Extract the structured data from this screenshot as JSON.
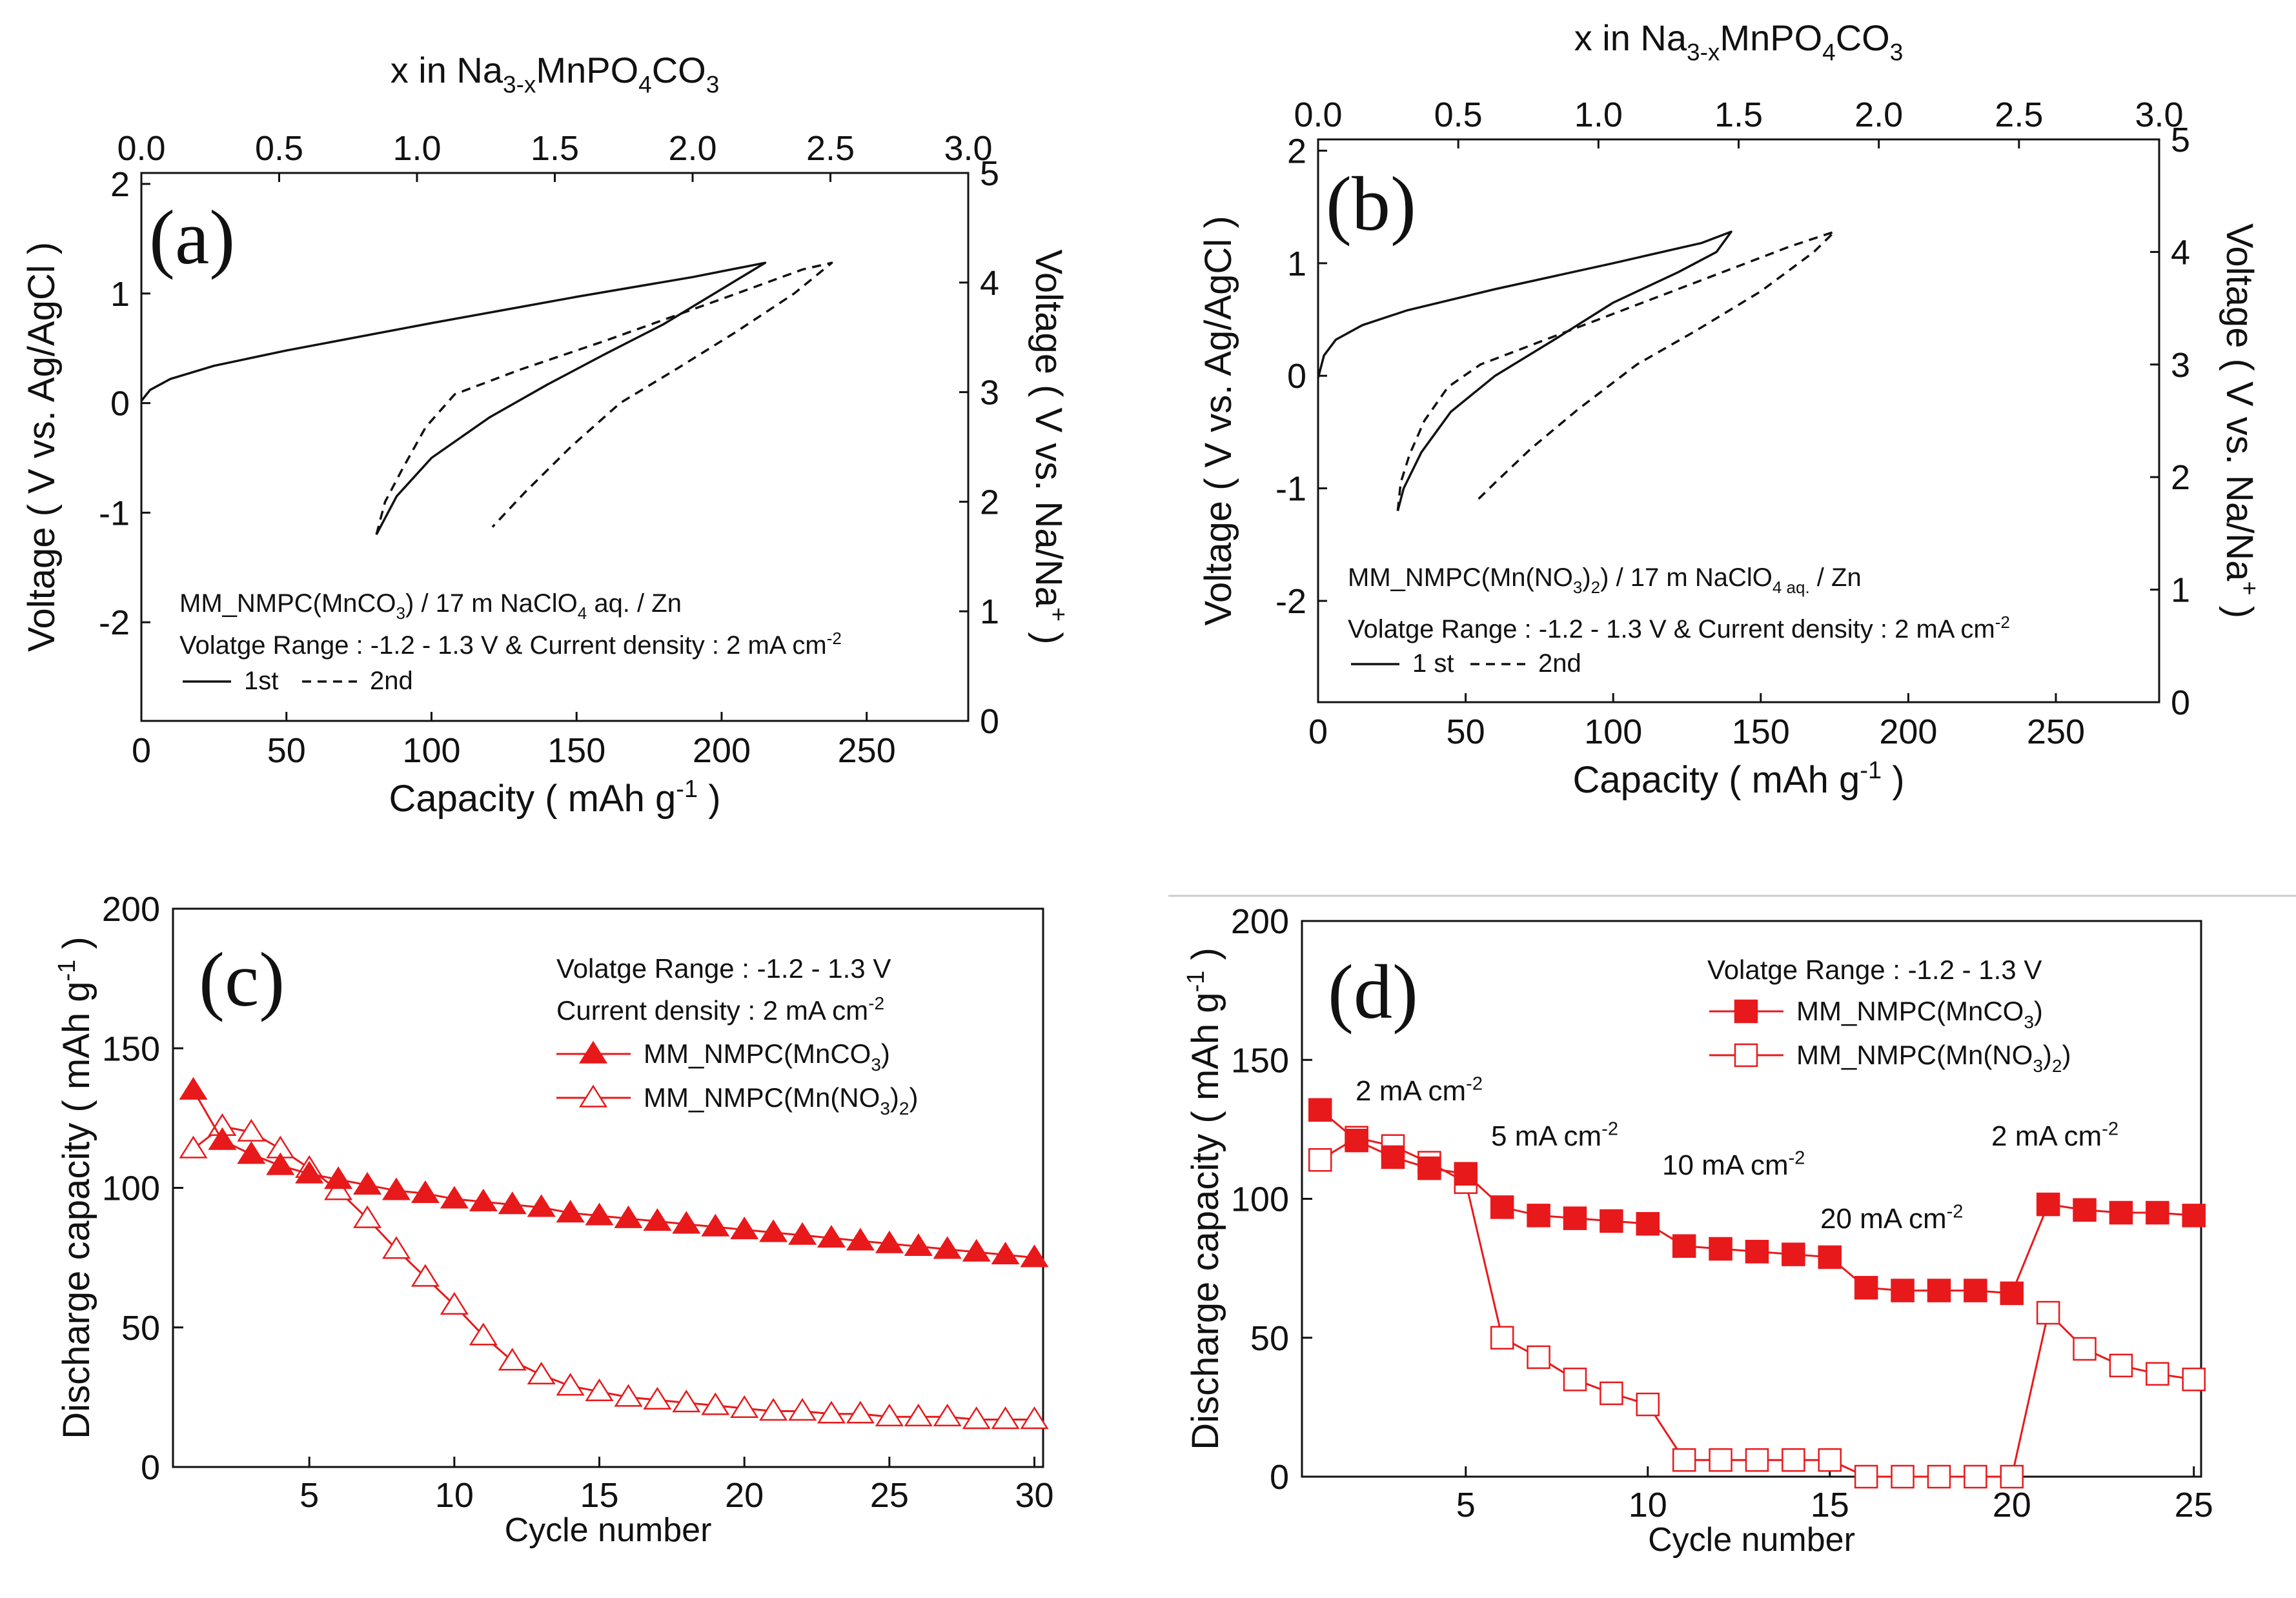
{
  "colors": {
    "axis": "#111111",
    "series_red": "#e8191b",
    "white": "#ffffff"
  },
  "chart_data": [
    {
      "panel": "(a)",
      "type": "line",
      "top_axis_label": {
        "pre": "x in Na",
        "sub": "3-x",
        "mid": "MnPO",
        "sub2": "4",
        "post": "CO",
        "sub3": "3"
      },
      "top_ticks": [
        "0.0",
        "0.5",
        "1.0",
        "1.5",
        "2.0",
        "2.5",
        "3.0"
      ],
      "top_range": [
        0,
        3
      ],
      "xlabel": "Capacity ( mAh g",
      "xlabel_sup": "-1",
      "xlabel_end": " )",
      "xlim": [
        0,
        285
      ],
      "x_ticks": [
        "0",
        "50",
        "100",
        "150",
        "200",
        "250"
      ],
      "ylabel": "Voltage ( V vs. Ag/AgCl )",
      "ylim": [
        -2.9,
        2.1
      ],
      "y_ticks": [
        "-2",
        "-1",
        "0",
        "1",
        "2"
      ],
      "y2label": "Voltage ( V vs. Na/Na",
      "y2label_sup": "+",
      "y2label_end": " )",
      "y2_ticks": [
        "0",
        "1",
        "2",
        "3",
        "4",
        "5"
      ],
      "cell": {
        "pre": "MM_NMPC(MnCO",
        "sub": "3",
        "mid": ") / 17 m NaClO",
        "sub2": "4",
        "post": " aq. / Zn"
      },
      "range_text": "Volatge Range : -1.2 - 1.3 V & Current density : 2 mA cm",
      "range_sup": "-2",
      "legend": [
        "1st",
        "2nd"
      ],
      "series": [
        {
          "name": "1st",
          "style": "solid",
          "charge": [
            [
              0,
              0.02
            ],
            [
              3,
              0.12
            ],
            [
              10,
              0.22
            ],
            [
              25,
              0.34
            ],
            [
              50,
              0.48
            ],
            [
              100,
              0.73
            ],
            [
              150,
              0.97
            ],
            [
              190,
              1.15
            ],
            [
              215,
              1.28
            ]
          ],
          "discharge": [
            [
              215,
              1.28
            ],
            [
              200,
              1.04
            ],
            [
              180,
              0.72
            ],
            [
              160,
              0.45
            ],
            [
              140,
              0.17
            ],
            [
              120,
              -0.13
            ],
            [
              100,
              -0.5
            ],
            [
              88,
              -0.85
            ],
            [
              81,
              -1.2
            ]
          ]
        },
        {
          "name": "2nd",
          "style": "dashed",
          "charge": [
            [
              81,
              -1.2
            ],
            [
              84,
              -0.9
            ],
            [
              90,
              -0.6
            ],
            [
              98,
              -0.22
            ],
            [
              108,
              0.08
            ],
            [
              130,
              0.3
            ],
            [
              160,
              0.57
            ],
            [
              200,
              0.95
            ],
            [
              228,
              1.22
            ],
            [
              238,
              1.28
            ]
          ],
          "discharge": [
            [
              238,
              1.28
            ],
            [
              225,
              1.0
            ],
            [
              205,
              0.65
            ],
            [
              185,
              0.32
            ],
            [
              165,
              0.0
            ],
            [
              148,
              -0.4
            ],
            [
              132,
              -0.82
            ],
            [
              121,
              -1.13
            ]
          ]
        }
      ]
    },
    {
      "panel": "(b)",
      "type": "line",
      "top_axis_label": {
        "pre": "x in Na",
        "sub": "3-x",
        "mid": "MnPO",
        "sub2": "4",
        "post": "CO",
        "sub3": "3"
      },
      "top_ticks": [
        "0.0",
        "0.5",
        "1.0",
        "1.5",
        "2.0",
        "2.5",
        "3.0"
      ],
      "top_range": [
        0,
        3
      ],
      "xlabel": "Capacity ( mAh g",
      "xlabel_sup": "-1",
      "xlabel_end": " )",
      "xlim": [
        0,
        285
      ],
      "x_ticks": [
        "0",
        "50",
        "100",
        "150",
        "200",
        "250"
      ],
      "ylabel": "Voltage ( V vs. Ag/AgCl )",
      "ylim": [
        -2.9,
        2.1
      ],
      "y_ticks": [
        "-2",
        "-1",
        "0",
        "1",
        "2"
      ],
      "y2label": "Voltage ( V vs. Na/Na",
      "y2label_sup": "+",
      "y2label_end": " )",
      "y2_ticks": [
        "0",
        "1",
        "2",
        "3",
        "4",
        "5"
      ],
      "cell": {
        "pre": "MM_NMPC(Mn(NO",
        "sub": "3",
        "mid": ")",
        "sub2": "2",
        "post": ") / 17 m NaClO",
        "sub3": "4 aq.",
        "end": " / Zn"
      },
      "range_text": "Volatge Range : -1.2 - 1.3 V & Current density : 2 mA cm",
      "range_sup": "-2",
      "legend": [
        "1 st",
        "2nd"
      ],
      "series": [
        {
          "name": "1st",
          "style": "solid",
          "charge": [
            [
              0,
              -0.02
            ],
            [
              2,
              0.18
            ],
            [
              6,
              0.32
            ],
            [
              15,
              0.45
            ],
            [
              30,
              0.58
            ],
            [
              60,
              0.77
            ],
            [
              100,
              1.0
            ],
            [
              130,
              1.18
            ],
            [
              140,
              1.28
            ]
          ],
          "discharge": [
            [
              140,
              1.28
            ],
            [
              135,
              1.1
            ],
            [
              122,
              0.92
            ],
            [
              100,
              0.65
            ],
            [
              80,
              0.32
            ],
            [
              60,
              0.0
            ],
            [
              45,
              -0.32
            ],
            [
              35,
              -0.68
            ],
            [
              29,
              -1.0
            ],
            [
              27,
              -1.2
            ]
          ]
        },
        {
          "name": "2nd",
          "style": "dashed",
          "charge": [
            [
              27,
              -1.2
            ],
            [
              28,
              -0.95
            ],
            [
              31,
              -0.7
            ],
            [
              36,
              -0.4
            ],
            [
              44,
              -0.1
            ],
            [
              55,
              0.1
            ],
            [
              75,
              0.3
            ],
            [
              100,
              0.55
            ],
            [
              130,
              0.85
            ],
            [
              160,
              1.15
            ],
            [
              175,
              1.28
            ]
          ],
          "discharge": [
            [
              175,
              1.28
            ],
            [
              168,
              1.1
            ],
            [
              150,
              0.75
            ],
            [
              128,
              0.4
            ],
            [
              108,
              0.1
            ],
            [
              88,
              -0.3
            ],
            [
              72,
              -0.65
            ],
            [
              60,
              -0.95
            ],
            [
              53,
              -1.13
            ]
          ]
        }
      ]
    },
    {
      "panel": "(c)",
      "type": "line",
      "xlabel": "Cycle number",
      "xlim": [
        0.3,
        30.3
      ],
      "x_ticks": [
        "5",
        "10",
        "15",
        "20",
        "25",
        "30"
      ],
      "ylabel": "Discharge capacity ( mAh g",
      "ylabel_sup": "-1",
      "ylabel_end": " )",
      "ylim": [
        0,
        200
      ],
      "y_ticks": [
        "0",
        "50",
        "100",
        "150",
        "200"
      ],
      "notes": [
        "Volatge Range : -1.2 - 1.3 V",
        "Current density : 2 mA cm"
      ],
      "notes_sup": "-2",
      "legend": [
        {
          "pre": "MM_NMPC(MnCO",
          "sub": "3",
          "post": ")"
        },
        {
          "pre": "MM_NMPC(Mn(NO",
          "sub": "3",
          "post": ")",
          "sub2": "2",
          "end": ")"
        }
      ],
      "x": [
        1,
        2,
        3,
        4,
        5,
        6,
        7,
        8,
        9,
        10,
        11,
        12,
        13,
        14,
        15,
        16,
        17,
        18,
        19,
        20,
        21,
        22,
        23,
        24,
        25,
        26,
        27,
        28,
        29,
        30
      ],
      "series": [
        {
          "name": "MM_NMPC(MnCO3)",
          "marker": "filled-triangle",
          "values": [
            135,
            117,
            112,
            108,
            105,
            103,
            101,
            99,
            98,
            96,
            95,
            94,
            93,
            91,
            90,
            89,
            88,
            87,
            86,
            85,
            84,
            83,
            82,
            81,
            80,
            79,
            78,
            77,
            76,
            75
          ]
        },
        {
          "name": "MM_NMPC(Mn(NO3)2)",
          "marker": "open-triangle",
          "values": [
            114,
            122,
            120,
            114,
            107,
            99,
            89,
            78,
            68,
            58,
            47,
            38,
            33,
            29,
            27,
            25,
            24,
            23,
            22,
            21,
            20,
            20,
            19,
            19,
            18,
            18,
            18,
            17,
            17,
            17
          ]
        }
      ]
    },
    {
      "panel": "(d)",
      "type": "line",
      "xlabel": "Cycle number",
      "xlim": [
        0.5,
        25.2
      ],
      "x_ticks": [
        "5",
        "10",
        "15",
        "20",
        "25"
      ],
      "ylabel": "Discharge capacity ( mAh g",
      "ylabel_sup": "-1",
      "ylabel_end": " )",
      "ylim": [
        0,
        200
      ],
      "y_ticks": [
        "0",
        "50",
        "100",
        "150",
        "200"
      ],
      "notes": [
        "Volatge Range : -1.2 - 1.3 V"
      ],
      "legend": [
        {
          "pre": "MM_NMPC(MnCO",
          "sub": "3",
          "post": ")"
        },
        {
          "pre": "MM_NMPC(Mn(NO",
          "sub": "3",
          "post": ")",
          "sub2": "2",
          "end": ")"
        }
      ],
      "rate_labels": [
        {
          "text": "2 mA cm",
          "sup": "-2"
        },
        {
          "text": "5 mA cm",
          "sup": "-2"
        },
        {
          "text": "10 mA cm",
          "sup": "-2"
        },
        {
          "text": "20 mA cm",
          "sup": "-2"
        },
        {
          "text": "2 mA cm",
          "sup": "-2"
        }
      ],
      "x": [
        1,
        2,
        3,
        4,
        5,
        6,
        7,
        8,
        9,
        10,
        11,
        12,
        13,
        14,
        15,
        16,
        17,
        18,
        19,
        20,
        21,
        22,
        23,
        24,
        25
      ],
      "series": [
        {
          "name": "MM_NMPC(MnCO3)",
          "marker": "filled-square",
          "values": [
            132,
            121,
            115,
            111,
            109,
            97,
            94,
            93,
            92,
            91,
            83,
            82,
            81,
            80,
            79,
            68,
            67,
            67,
            67,
            66,
            98,
            96,
            95,
            95,
            94
          ]
        },
        {
          "name": "MM_NMPC(Mn(NO3)2)",
          "marker": "open-square",
          "values": [
            114,
            122,
            119,
            113,
            106,
            50,
            43,
            35,
            30,
            26,
            6,
            6,
            6,
            6,
            6,
            0,
            0,
            0,
            0,
            0,
            59,
            46,
            40,
            37,
            35
          ]
        }
      ]
    }
  ]
}
